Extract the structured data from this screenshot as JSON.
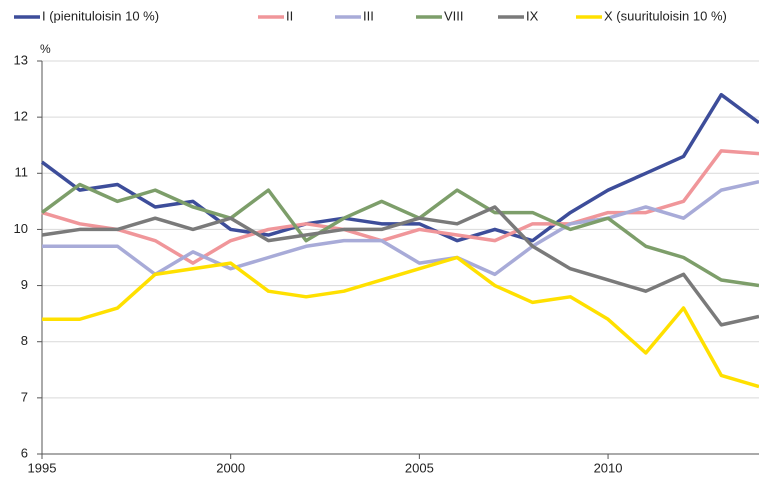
{
  "chart_data": {
    "type": "line",
    "unit_label": "%",
    "x": [
      1995,
      1996,
      1997,
      1998,
      1999,
      2000,
      2001,
      2002,
      2003,
      2004,
      2005,
      2006,
      2007,
      2008,
      2009,
      2010,
      2011,
      2012,
      2013,
      2014
    ],
    "series": [
      {
        "name": "I (pienituloisin 10 %)",
        "color": "#3d4d9a",
        "values": [
          11.2,
          10.7,
          10.8,
          10.4,
          10.5,
          10.0,
          9.9,
          10.1,
          10.2,
          10.1,
          10.1,
          9.8,
          10.0,
          9.8,
          10.3,
          10.7,
          11.0,
          11.3,
          12.4,
          11.9
        ]
      },
      {
        "name": "II",
        "color": "#f0969a",
        "values": [
          10.3,
          10.1,
          10.0,
          9.8,
          9.4,
          9.8,
          10.0,
          10.1,
          10.0,
          9.8,
          10.0,
          9.9,
          9.8,
          10.1,
          10.1,
          10.3,
          10.3,
          10.5,
          11.4,
          11.35
        ]
      },
      {
        "name": "III",
        "color": "#a8abd8",
        "values": [
          9.7,
          9.7,
          9.7,
          9.2,
          9.6,
          9.3,
          9.5,
          9.7,
          9.8,
          9.8,
          9.4,
          9.5,
          9.2,
          9.7,
          10.1,
          10.2,
          10.4,
          10.2,
          10.7,
          10.85
        ]
      },
      {
        "name": "VIII",
        "color": "#7d9e6a",
        "values": [
          10.3,
          10.8,
          10.5,
          10.7,
          10.4,
          10.2,
          10.7,
          9.8,
          10.2,
          10.5,
          10.2,
          10.7,
          10.3,
          10.3,
          10.0,
          10.2,
          9.7,
          9.5,
          9.1,
          9.0
        ]
      },
      {
        "name": "IX",
        "color": "#7a7a7a",
        "values": [
          9.9,
          10.0,
          10.0,
          10.2,
          10.0,
          10.2,
          9.8,
          9.9,
          10.0,
          10.0,
          10.2,
          10.1,
          10.4,
          9.7,
          9.3,
          9.1,
          8.9,
          9.2,
          8.3,
          8.45
        ]
      },
      {
        "name": "X (suurituloisin 10 %)",
        "color": "#ffe000",
        "values": [
          8.4,
          8.4,
          8.6,
          9.2,
          9.3,
          9.4,
          8.9,
          8.8,
          8.9,
          9.1,
          9.3,
          9.5,
          9.0,
          8.7,
          8.8,
          8.4,
          7.8,
          8.6,
          7.4,
          7.2
        ]
      }
    ],
    "xlim": [
      1995,
      2014
    ],
    "xticks": [
      1995,
      2000,
      2005,
      2010
    ],
    "ylim": [
      6,
      13
    ],
    "yticks": [
      6,
      7,
      8,
      9,
      10,
      11,
      12,
      13
    ],
    "grid": true
  }
}
